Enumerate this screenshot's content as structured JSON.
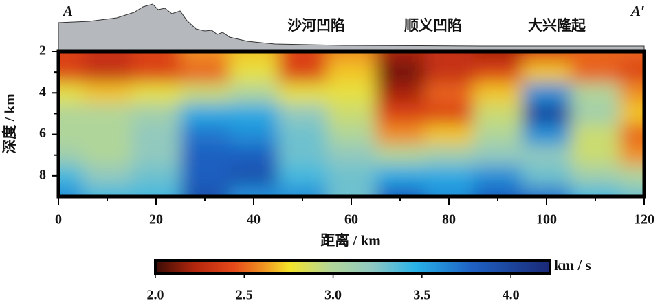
{
  "chart_data": {
    "type": "heatmap",
    "section_start": "A",
    "section_end": "A′",
    "annotations": [
      "沙河凹陷",
      "顺义凹陷",
      "大兴隆起"
    ],
    "xlabel": "距离 / km",
    "ylabel": "深度 / km",
    "x": [
      0,
      10,
      20,
      30,
      40,
      50,
      60,
      70,
      80,
      90,
      100,
      110,
      120
    ],
    "y": [
      2,
      3,
      4,
      5,
      6,
      7,
      8,
      9
    ],
    "values": [
      [
        2.4,
        2.3,
        2.4,
        2.6,
        2.7,
        2.4,
        2.6,
        2.2,
        2.3,
        2.2,
        2.4,
        2.5,
        2.5
      ],
      [
        2.4,
        2.3,
        2.4,
        2.5,
        2.8,
        2.4,
        2.7,
        2.1,
        2.3,
        2.4,
        2.7,
        2.5,
        2.4
      ],
      [
        2.8,
        2.7,
        2.8,
        2.9,
        3.0,
        2.8,
        2.8,
        2.2,
        2.5,
        2.7,
        3.6,
        3.0,
        2.6
      ],
      [
        3.0,
        3.0,
        3.1,
        3.5,
        3.5,
        3.2,
        2.9,
        2.4,
        2.4,
        2.9,
        4.0,
        3.1,
        2.7
      ],
      [
        3.0,
        3.0,
        3.2,
        3.7,
        3.6,
        3.3,
        3.0,
        2.6,
        2.7,
        3.0,
        3.6,
        2.9,
        2.5
      ],
      [
        3.1,
        3.0,
        3.2,
        3.8,
        3.8,
        3.3,
        3.2,
        3.0,
        3.1,
        3.2,
        3.2,
        2.9,
        2.6
      ],
      [
        3.4,
        3.2,
        3.3,
        3.8,
        3.9,
        3.4,
        3.3,
        3.5,
        3.5,
        3.6,
        3.3,
        3.1,
        3.0
      ],
      [
        3.6,
        3.4,
        3.4,
        3.9,
        3.6,
        3.6,
        3.3,
        3.8,
        3.6,
        3.8,
        3.7,
        3.4,
        3.3
      ]
    ],
    "xlim": [
      0,
      120
    ],
    "xticks": [
      0,
      20,
      40,
      60,
      80,
      100,
      120
    ],
    "xminor": [
      10,
      30,
      50,
      70,
      90,
      110
    ],
    "ylim": [
      2,
      9
    ],
    "y_reversed": true,
    "yticks": [
      2,
      4,
      6,
      8
    ],
    "yminor": [
      3,
      5,
      7
    ],
    "colorbar": {
      "label": "km / s",
      "lim": [
        2.0,
        4.22
      ],
      "ticks": [
        {
          "value": 2.0,
          "label": "2.0"
        },
        {
          "value": 2.5,
          "label": "2.5"
        },
        {
          "value": 3.0,
          "label": "3.0"
        },
        {
          "value": 3.5,
          "label": "3.5"
        },
        {
          "value": 4.0,
          "label": "4.0"
        }
      ]
    }
  }
}
